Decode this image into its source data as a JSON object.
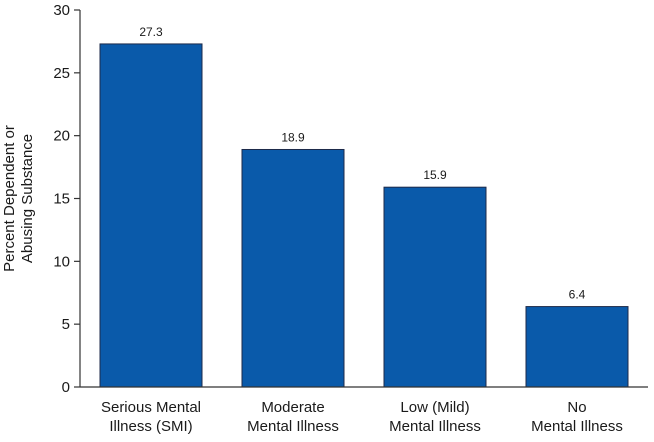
{
  "chart_data": {
    "type": "bar",
    "categories": [
      [
        "Serious Mental",
        "Illness (SMI)"
      ],
      [
        "Moderate",
        "Mental Illness"
      ],
      [
        "Low (Mild)",
        "Mental Illness"
      ],
      [
        "No",
        "Mental Illness"
      ]
    ],
    "values": [
      27.3,
      18.9,
      15.9,
      6.4
    ],
    "value_labels": [
      "27.3",
      "18.9",
      "15.9",
      "6.4"
    ],
    "ylabel": [
      "Percent Dependent or",
      "Abusing Substance"
    ],
    "xlabel": "",
    "ylim": [
      0,
      30
    ],
    "yticks": [
      0,
      5,
      10,
      15,
      20,
      25,
      30
    ],
    "grid": false,
    "bar_color": "#0a5aaa",
    "bar_edge_color": "#1c2a4a",
    "axis_color": "#333333"
  }
}
